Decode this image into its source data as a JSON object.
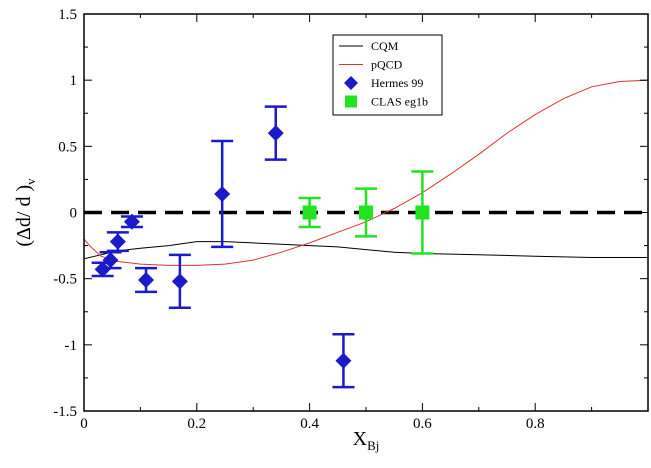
{
  "chart_data": {
    "type": "scatter",
    "xlabel_main": "X",
    "xlabel_sub": "Bj",
    "ylabel_main": "(Δd/ d )",
    "ylabel_sub": "v",
    "xlim": [
      0,
      1
    ],
    "ylim": [
      -1.5,
      1.5
    ],
    "xticks": [
      {
        "v": 0,
        "label": "0"
      },
      {
        "v": 0.2,
        "label": "0.2"
      },
      {
        "v": 0.4,
        "label": "0.4"
      },
      {
        "v": 0.6,
        "label": "0.6"
      },
      {
        "v": 0.8,
        "label": "0.8"
      }
    ],
    "yticks": [
      {
        "v": -1.5,
        "label": "-1.5"
      },
      {
        "v": -1,
        "label": "-1"
      },
      {
        "v": -0.5,
        "label": "-0.5"
      },
      {
        "v": 0,
        "label": "0"
      },
      {
        "v": 0.5,
        "label": "0.5"
      },
      {
        "v": 1,
        "label": "1"
      },
      {
        "v": 1.5,
        "label": "1.5"
      }
    ],
    "zero_line": 0,
    "grid": false,
    "legend_position": "top-right",
    "series": [
      {
        "name": "CQM",
        "kind": "line",
        "color": "#000000",
        "points": [
          [
            0,
            -0.35
          ],
          [
            0.03,
            -0.32
          ],
          [
            0.06,
            -0.29
          ],
          [
            0.1,
            -0.27
          ],
          [
            0.15,
            -0.25
          ],
          [
            0.2,
            -0.22
          ],
          [
            0.25,
            -0.22
          ],
          [
            0.3,
            -0.23
          ],
          [
            0.35,
            -0.24
          ],
          [
            0.4,
            -0.25
          ],
          [
            0.45,
            -0.26
          ],
          [
            0.5,
            -0.28
          ],
          [
            0.55,
            -0.3
          ],
          [
            0.6,
            -0.31
          ],
          [
            0.7,
            -0.32
          ],
          [
            0.8,
            -0.33
          ],
          [
            0.9,
            -0.34
          ],
          [
            1,
            -0.34
          ]
        ]
      },
      {
        "name": "pQCD",
        "kind": "line",
        "color": "#e3302f",
        "points": [
          [
            0,
            -0.2
          ],
          [
            0.01,
            -0.25
          ],
          [
            0.03,
            -0.33
          ],
          [
            0.06,
            -0.37
          ],
          [
            0.1,
            -0.39
          ],
          [
            0.15,
            -0.4
          ],
          [
            0.2,
            -0.4
          ],
          [
            0.25,
            -0.39
          ],
          [
            0.3,
            -0.36
          ],
          [
            0.35,
            -0.3
          ],
          [
            0.4,
            -0.23
          ],
          [
            0.45,
            -0.15
          ],
          [
            0.5,
            -0.07
          ],
          [
            0.55,
            0.03
          ],
          [
            0.6,
            0.15
          ],
          [
            0.65,
            0.29
          ],
          [
            0.7,
            0.44
          ],
          [
            0.75,
            0.6
          ],
          [
            0.8,
            0.74
          ],
          [
            0.85,
            0.86
          ],
          [
            0.9,
            0.95
          ],
          [
            0.95,
            0.99
          ],
          [
            1,
            1.0
          ]
        ]
      },
      {
        "name": "Hermes 99",
        "kind": "points",
        "marker": "diamond",
        "color": "#1a1ac8",
        "points": [
          {
            "x": 0.033,
            "y": -0.43,
            "err": 0.05
          },
          {
            "x": 0.047,
            "y": -0.36,
            "err": 0.06
          },
          {
            "x": 0.06,
            "y": -0.22,
            "err": 0.07
          },
          {
            "x": 0.085,
            "y": -0.07,
            "err": 0.04
          },
          {
            "x": 0.11,
            "y": -0.51,
            "err": 0.09
          },
          {
            "x": 0.17,
            "y": -0.52,
            "err": 0.2
          },
          {
            "x": 0.245,
            "y": 0.14,
            "err": 0.4
          },
          {
            "x": 0.34,
            "y": 0.6,
            "err": 0.2
          },
          {
            "x": 0.46,
            "y": -1.12,
            "err": 0.2
          }
        ]
      },
      {
        "name": "CLAS eg1b",
        "kind": "points",
        "marker": "square",
        "color": "#22e322",
        "points": [
          {
            "x": 0.4,
            "y": 0.0,
            "err": 0.11
          },
          {
            "x": 0.5,
            "y": 0.0,
            "err": 0.18
          },
          {
            "x": 0.6,
            "y": 0.0,
            "err": 0.31
          }
        ]
      }
    ]
  }
}
